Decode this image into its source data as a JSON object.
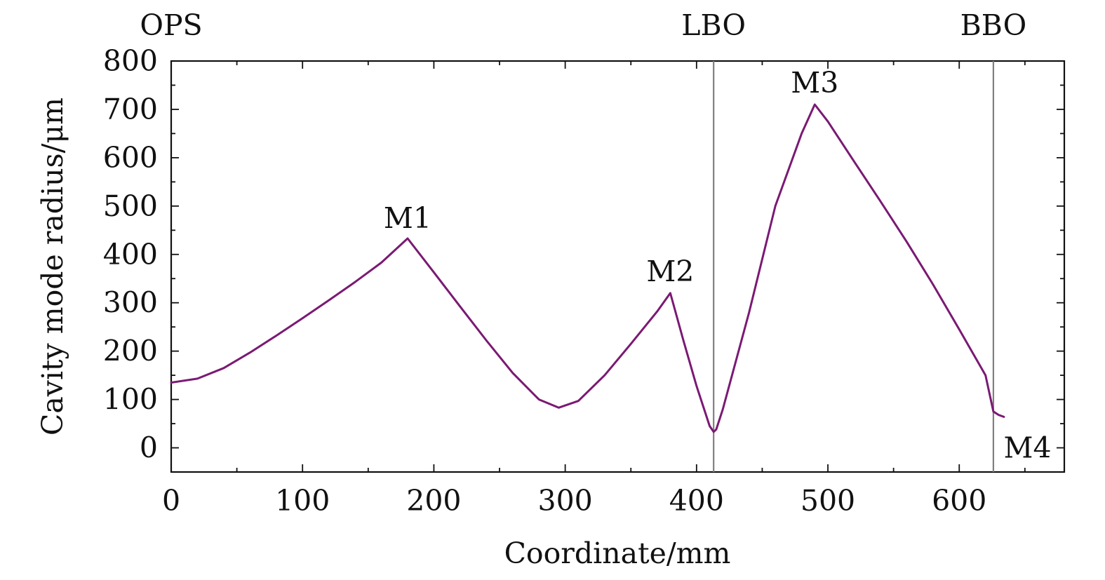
{
  "chart_data": {
    "type": "line",
    "title": "",
    "xlabel": "Coordinate/mm",
    "ylabel": "Cavity mode radius/μm",
    "xlim": [
      0,
      680
    ],
    "ylim": [
      -50,
      800
    ],
    "x_ticks": [
      0,
      100,
      200,
      300,
      400,
      500,
      600
    ],
    "y_ticks": [
      0,
      100,
      200,
      300,
      400,
      500,
      600,
      700,
      800
    ],
    "grid": false,
    "line_color": "#7a1a73",
    "marker_line_color": "#808080",
    "series": [
      {
        "x": [
          0,
          20,
          40,
          60,
          80,
          100,
          120,
          140,
          160,
          180,
          200,
          220,
          240,
          260,
          280,
          295,
          310,
          330,
          350,
          370,
          380,
          390,
          400,
          410,
          413,
          415,
          420,
          440,
          460,
          480,
          490,
          500,
          520,
          540,
          560,
          580,
          600,
          620,
          626,
          630,
          634
        ],
        "y": [
          135,
          143,
          165,
          197,
          232,
          268,
          305,
          343,
          383,
          433,
          363,
          292,
          222,
          155,
          100,
          83,
          97,
          150,
          215,
          282,
          320,
          222,
          128,
          45,
          33,
          38,
          80,
          280,
          500,
          650,
          710,
          675,
          592,
          510,
          426,
          338,
          245,
          150,
          75,
          68,
          64
        ]
      }
    ],
    "vertical_markers": [
      {
        "x": 413,
        "label": "LBO"
      },
      {
        "x": 626,
        "label": "BBO"
      }
    ],
    "top_labels": [
      {
        "x": 0,
        "label": "OPS"
      },
      {
        "x": 413,
        "label": "LBO"
      },
      {
        "x": 626,
        "label": "BBO"
      }
    ],
    "annotations": [
      {
        "x": 180,
        "y": 475,
        "label": "M1"
      },
      {
        "x": 380,
        "y": 365,
        "label": "M2"
      },
      {
        "x": 490,
        "y": 755,
        "label": "M3"
      },
      {
        "x": 652,
        "y": 0,
        "label": "M4"
      }
    ]
  }
}
